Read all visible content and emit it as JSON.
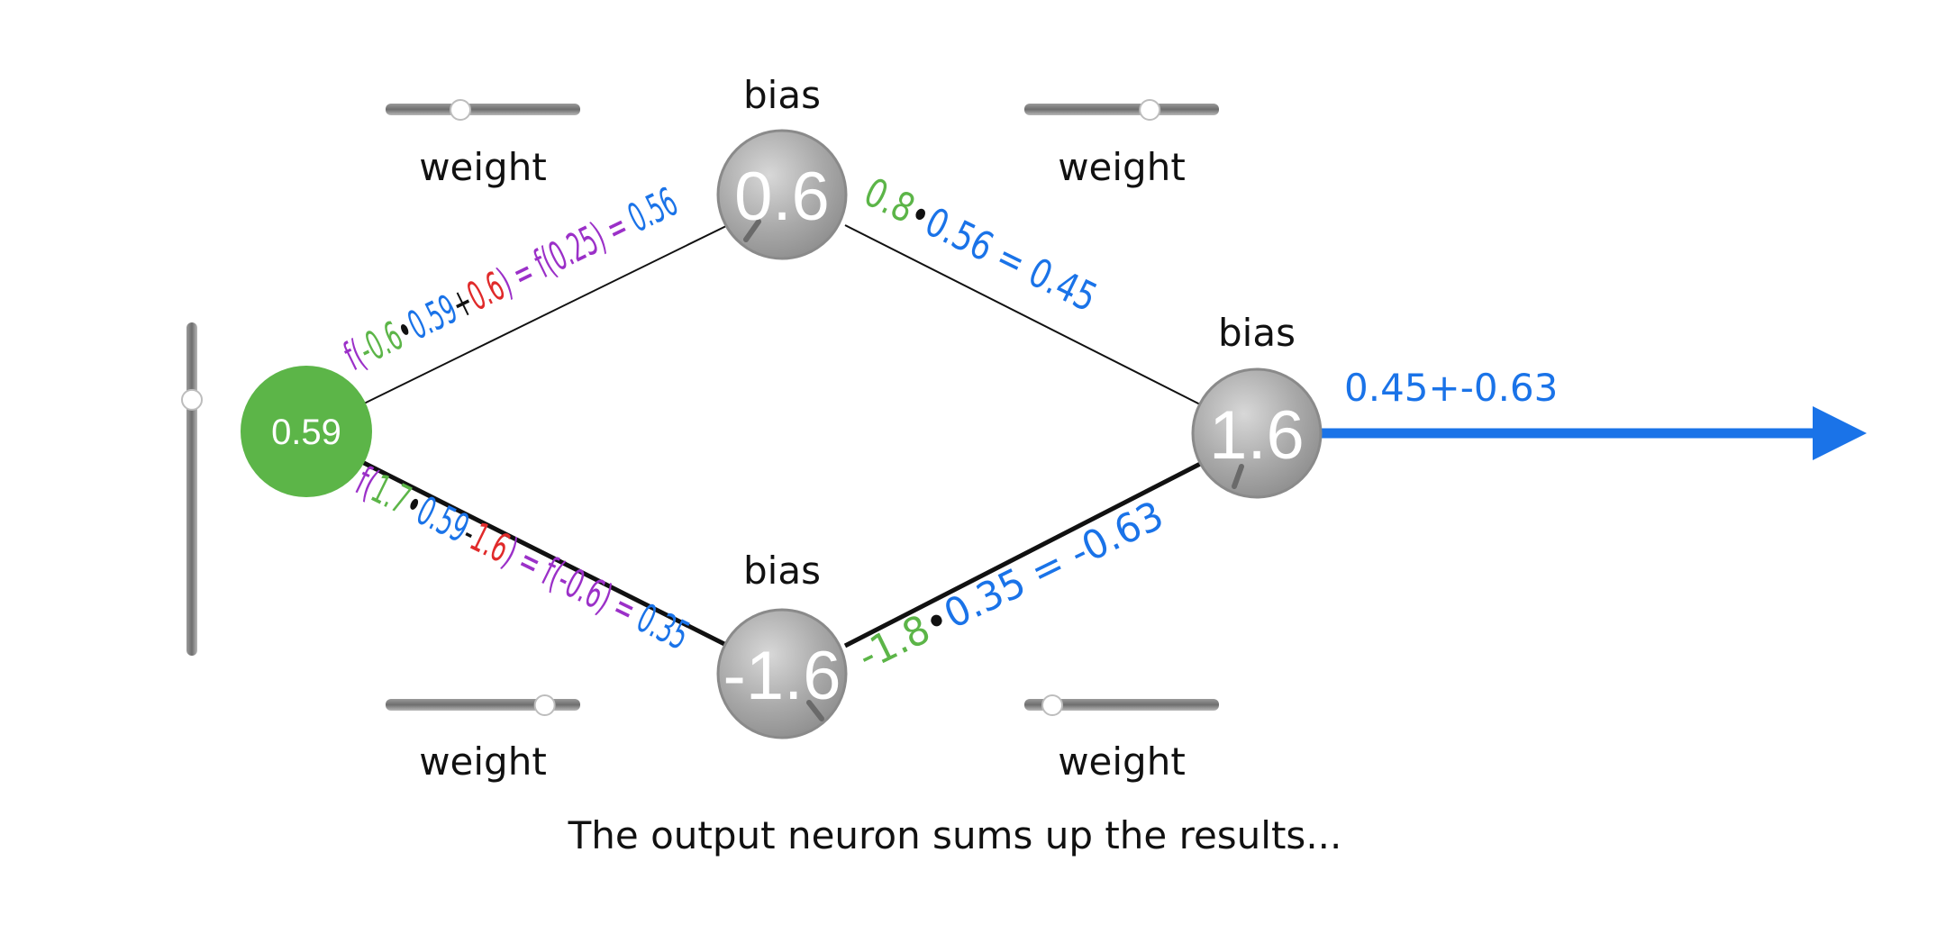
{
  "labels": {
    "bias": "bias",
    "weight": "weight"
  },
  "caption": "The output neuron sums up the results...",
  "input_neuron": {
    "value": "0.59",
    "color": "#5cb548"
  },
  "hidden_top": {
    "value": "0.6"
  },
  "hidden_bottom": {
    "value": "-1.6"
  },
  "output_neuron": {
    "value": "1.6"
  },
  "output_sum": "0.45+-0.63",
  "input_slider": {
    "level": 0.78
  },
  "weight_sliders": {
    "top_left": {
      "level": 0.38
    },
    "top_right": {
      "level": 0.65
    },
    "bottom_left": {
      "level": 0.83
    },
    "bottom_right": {
      "level": 0.13
    }
  },
  "equations": {
    "top_left": {
      "f": "f(",
      "w": "-0.6",
      "dot": "•",
      "x": "0.59",
      "op": "+",
      "b": "0.6",
      "close": ") = f(0.25) = ",
      "res": "0.56"
    },
    "bottom_left": {
      "f": "f(",
      "w": "1.7",
      "dot": "•",
      "x": "0.59",
      "op": "-",
      "b": "1.6",
      "close": ") = f(-0.6) = ",
      "res": "0.35"
    },
    "top_right": {
      "w": "0.8",
      "dot": "•",
      "rest": "0.56 = 0.45"
    },
    "bottom_right": {
      "w": "-1.8",
      "dot": "•",
      "rest": "0.35 = -0.63"
    }
  },
  "colors": {
    "purple": "#9b30c8",
    "green": "#5cb548",
    "blue": "#1a73e8",
    "red": "#e02a2a",
    "black": "#111111"
  }
}
